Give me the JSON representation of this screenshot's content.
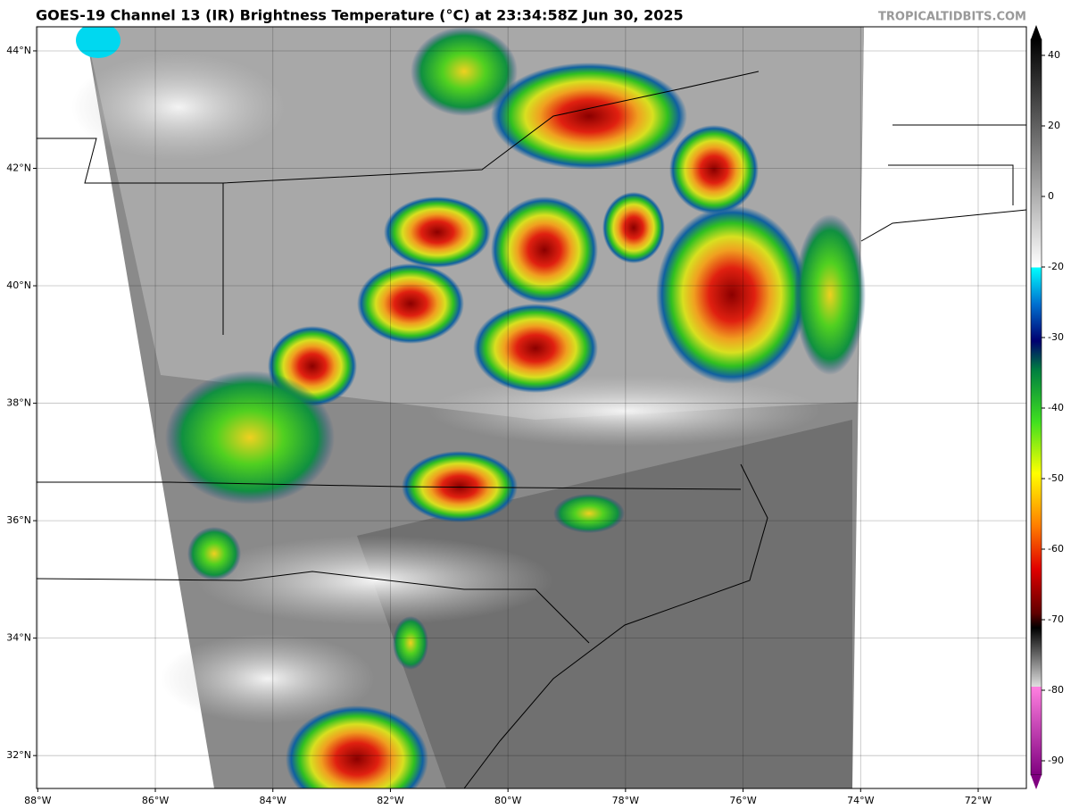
{
  "title": "GOES-19 Channel 13 (IR) Brightness Temperature (°C) at 23:34:58Z Jun 30, 2025",
  "watermark": "TROPICALTIDBITS.COM",
  "map": {
    "xlim": [
      -88.02,
      -71.18
    ],
    "ylim": [
      31.44,
      44.41
    ],
    "xticks": [
      {
        "value": -88,
        "label": "88°W"
      },
      {
        "value": -86,
        "label": "86°W"
      },
      {
        "value": -84,
        "label": "84°W"
      },
      {
        "value": -82,
        "label": "82°W"
      },
      {
        "value": -80,
        "label": "80°W"
      },
      {
        "value": -78,
        "label": "78°W"
      },
      {
        "value": -76,
        "label": "76°W"
      },
      {
        "value": -74,
        "label": "74°W"
      },
      {
        "value": -72,
        "label": "72°W"
      }
    ],
    "yticks": [
      {
        "value": 32,
        "label": "32°N"
      },
      {
        "value": 34,
        "label": "34°N"
      },
      {
        "value": 36,
        "label": "36°N"
      },
      {
        "value": 38,
        "label": "38°N"
      },
      {
        "value": 40,
        "label": "40°N"
      },
      {
        "value": 42,
        "label": "42°N"
      },
      {
        "value": 44,
        "label": "44°N"
      }
    ]
  },
  "colorbar": {
    "ticks": [
      40,
      20,
      0,
      -20,
      -30,
      -40,
      -50,
      -60,
      -70,
      -80,
      -90
    ]
  }
}
